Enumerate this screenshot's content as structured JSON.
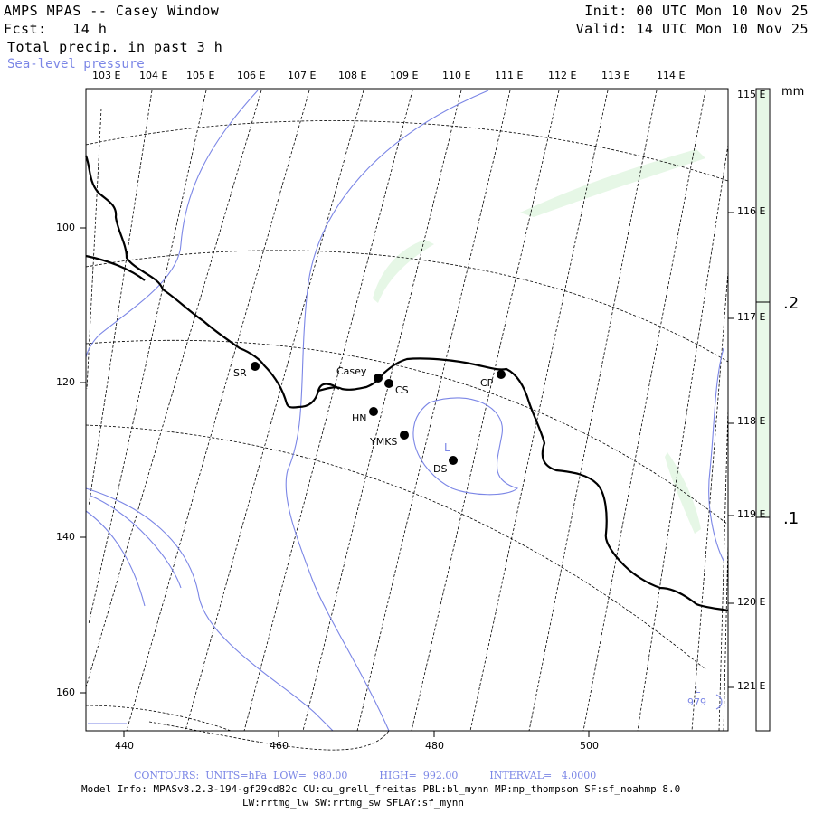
{
  "header": {
    "title": "AMPS MPAS -- Casey Window",
    "fcst": "Fcst:   14 h",
    "field": "Total precip. in past 3 h",
    "overlay": "Sea-level pressure",
    "init": "Init: 00 UTC Mon 10 Nov 25",
    "valid": "Valid: 14 UTC Mon 10 Nov 25"
  },
  "top_lon_labels": [
    "103 E",
    "104 E",
    "105 E",
    "106 E",
    "107 E",
    "108 E",
    "109 E",
    "110 E",
    "111 E",
    "112 E",
    "113 E",
    "114 E"
  ],
  "right_lon_labels": [
    "115 E",
    "116 E",
    "117 E",
    "118 E",
    "119 E",
    "120 E",
    "121 E"
  ],
  "left_axis": [
    "100",
    "120",
    "140",
    "160"
  ],
  "bottom_axis": [
    "440",
    "460",
    "480",
    "500"
  ],
  "colorbar": {
    "unit": "mm",
    "levels": [
      ".2",
      ".1"
    ],
    "fill_color": "#e6f7e6"
  },
  "stations": [
    {
      "name": "SR"
    },
    {
      "name": "Casey"
    },
    {
      "name": "CS"
    },
    {
      "name": "CP"
    },
    {
      "name": "HN"
    },
    {
      "name": "YMKS"
    },
    {
      "name": "DS"
    }
  ],
  "low_marks": [
    {
      "letter": "L"
    },
    {
      "letter": "L",
      "value": "979"
    }
  ],
  "footer": {
    "contours": "CONTOURS:  UNITS=hPa  LOW=  980.00          HIGH=  992.00          INTERVAL=   4.0000",
    "model_info_1": "Model Info: MPASv8.2.3-194-gf29cd82c CU:cu_grell_freitas PBL:bl_mynn MP:mp_thompson SF:sf_noahmp 8.0",
    "model_info_2": "LW:rrtmg_lw SW:rrtmg_sw SFLAY:sf_mynn"
  },
  "colors": {
    "coast": "#000000",
    "pressure": "#7b86e6",
    "precip": "#e8f7e8"
  }
}
